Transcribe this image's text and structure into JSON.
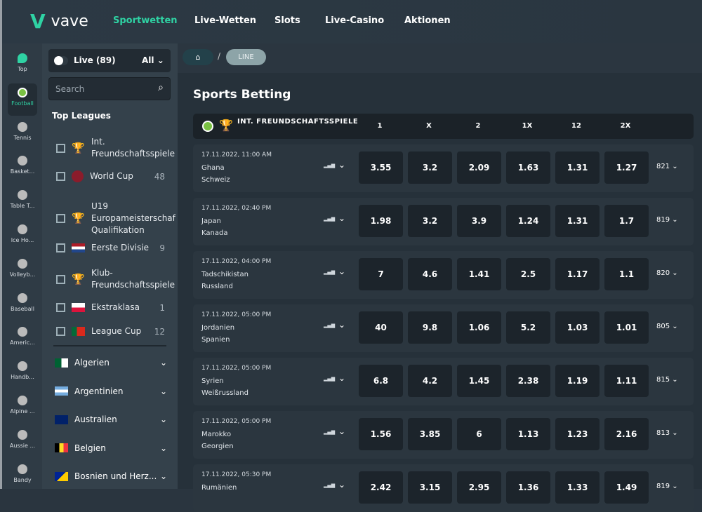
{
  "header": {
    "logo": "vave",
    "logo_mark": "V",
    "nav": [
      "Sportwetten",
      "Live-Wetten",
      "Slots",
      "Live-Casino",
      "Aktionen"
    ]
  },
  "sports": [
    {
      "label": "Top",
      "icon": "flame-icon"
    },
    {
      "label": "Football",
      "icon": "football-icon"
    },
    {
      "label": "Tennis",
      "icon": "tennis-icon"
    },
    {
      "label": "Basket...",
      "icon": "basketball-icon"
    },
    {
      "label": "Table T...",
      "icon": "table-tennis-icon"
    },
    {
      "label": "Ice Ho...",
      "icon": "ice-hockey-icon"
    },
    {
      "label": "Volleyb...",
      "icon": "volleyball-icon"
    },
    {
      "label": "Baseball",
      "icon": "baseball-icon"
    },
    {
      "label": "Americ...",
      "icon": "american-football-icon"
    },
    {
      "label": "Handb...",
      "icon": "handball-icon"
    },
    {
      "label": "Alpine ...",
      "icon": "alpine-icon"
    },
    {
      "label": "Aussie ...",
      "icon": "aussie-rules-icon"
    },
    {
      "label": "Bandy",
      "icon": "bandy-icon"
    }
  ],
  "accent": "#2fd3a4",
  "filter": {
    "live_label": "Live (89)",
    "all_label": "All",
    "search_placeholder": "Search"
  },
  "top_leagues_title": "Top Leagues",
  "top_leagues": [
    {
      "name": "Int. Freundschaftsspiele",
      "count": "",
      "flag": "trophy"
    },
    {
      "name": "World Cup",
      "count": "48",
      "flag": "worldcup"
    },
    {
      "name": "U19 Europameisterschaf Qualifikation",
      "count": "",
      "flag": "trophy"
    },
    {
      "name": "Eerste Divisie",
      "count": "9",
      "flag": "nl"
    },
    {
      "name": "Klub-Freundschaftsspiele",
      "count": "",
      "flag": "trophy"
    },
    {
      "name": "Ekstraklasa",
      "count": "1",
      "flag": "pl"
    },
    {
      "name": "League Cup",
      "count": "12",
      "flag": "pt"
    }
  ],
  "countries": [
    {
      "name": "Algerien",
      "flag": "dz"
    },
    {
      "name": "Argentinien",
      "flag": "ar"
    },
    {
      "name": "Australien",
      "flag": "au"
    },
    {
      "name": "Belgien",
      "flag": "be"
    },
    {
      "name": "Bosnien und Herz...",
      "flag": "ba"
    }
  ],
  "breadcrumb": {
    "current": "LINE",
    "separator": "/"
  },
  "page_title": "Sports Betting",
  "table": {
    "league": "INT. FREUNDSCHAFTSSPIELE",
    "columns": [
      "1",
      "X",
      "2",
      "1X",
      "12",
      "2X"
    ],
    "matches": [
      {
        "date": "17.11.2022, 11:00 AM",
        "home": "Ghana",
        "away": "Schweiz",
        "odds": [
          "3.55",
          "3.2",
          "2.09",
          "1.63",
          "1.31",
          "1.27"
        ],
        "markets": "821"
      },
      {
        "date": "17.11.2022, 02:40 PM",
        "home": "Japan",
        "away": "Kanada",
        "odds": [
          "1.98",
          "3.2",
          "3.9",
          "1.24",
          "1.31",
          "1.7"
        ],
        "markets": "819"
      },
      {
        "date": "17.11.2022, 04:00 PM",
        "home": "Tadschikistan",
        "away": "Russland",
        "odds": [
          "7",
          "4.6",
          "1.41",
          "2.5",
          "1.17",
          "1.1"
        ],
        "markets": "820"
      },
      {
        "date": "17.11.2022, 05:00 PM",
        "home": "Jordanien",
        "away": "Spanien",
        "odds": [
          "40",
          "9.8",
          "1.06",
          "5.2",
          "1.03",
          "1.01"
        ],
        "markets": "805"
      },
      {
        "date": "17.11.2022, 05:00 PM",
        "home": "Syrien",
        "away": "Weißrussland",
        "odds": [
          "6.8",
          "4.2",
          "1.45",
          "2.38",
          "1.19",
          "1.11"
        ],
        "markets": "815"
      },
      {
        "date": "17.11.2022, 05:00 PM",
        "home": "Marokko",
        "away": "Georgien",
        "odds": [
          "1.56",
          "3.85",
          "6",
          "1.13",
          "1.23",
          "2.16"
        ],
        "markets": "813"
      },
      {
        "date": "17.11.2022, 05:30 PM",
        "home": "Rumänien",
        "away": "",
        "odds": [
          "2.42",
          "3.15",
          "2.95",
          "1.36",
          "1.33",
          "1.49"
        ],
        "markets": "819"
      }
    ]
  }
}
